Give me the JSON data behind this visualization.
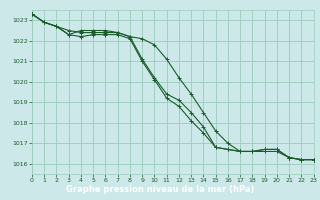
{
  "title": "Graphe pression niveau de la mer (hPa)",
  "bg_color": "#cce8e8",
  "grid_color": "#99ccbb",
  "line_color": "#1a5c2a",
  "title_bg": "#2d6e2d",
  "title_fg": "#ffffff",
  "xlim": [
    0,
    23
  ],
  "ylim": [
    1015.5,
    1023.5
  ],
  "yticks": [
    1016,
    1017,
    1018,
    1019,
    1020,
    1021,
    1022,
    1023
  ],
  "xticks": [
    0,
    1,
    2,
    3,
    4,
    5,
    6,
    7,
    8,
    9,
    10,
    11,
    12,
    13,
    14,
    15,
    16,
    17,
    18,
    19,
    20,
    21,
    22,
    23
  ],
  "series": [
    [
      1023.3,
      1022.9,
      1022.7,
      1022.5,
      1022.4,
      1022.4,
      1022.4,
      1022.4,
      1022.2,
      1021.1,
      1020.2,
      1019.4,
      1019.1,
      1018.5,
      1017.8,
      1016.8,
      1016.7,
      1016.6,
      1016.6,
      1016.7,
      1016.7,
      1016.3,
      1016.2,
      1016.2
    ],
    [
      1023.3,
      1022.9,
      1022.7,
      1022.3,
      1022.2,
      1022.3,
      1022.3,
      1022.3,
      1022.1,
      1021.0,
      1020.1,
      1019.2,
      1018.8,
      1018.1,
      1017.5,
      1016.8,
      1016.7,
      1016.6,
      1016.6,
      1016.7,
      1016.7,
      1016.3,
      1016.2,
      1016.2
    ],
    [
      1023.3,
      1022.9,
      1022.7,
      1022.3,
      1022.5,
      1022.5,
      1022.5,
      1022.4,
      1022.2,
      1022.1,
      1021.8,
      1021.1,
      1020.2,
      1019.4,
      1018.5,
      1017.6,
      1017.0,
      1016.6,
      1016.6,
      1016.6,
      1016.6,
      1016.3,
      1016.2,
      1016.2
    ]
  ]
}
